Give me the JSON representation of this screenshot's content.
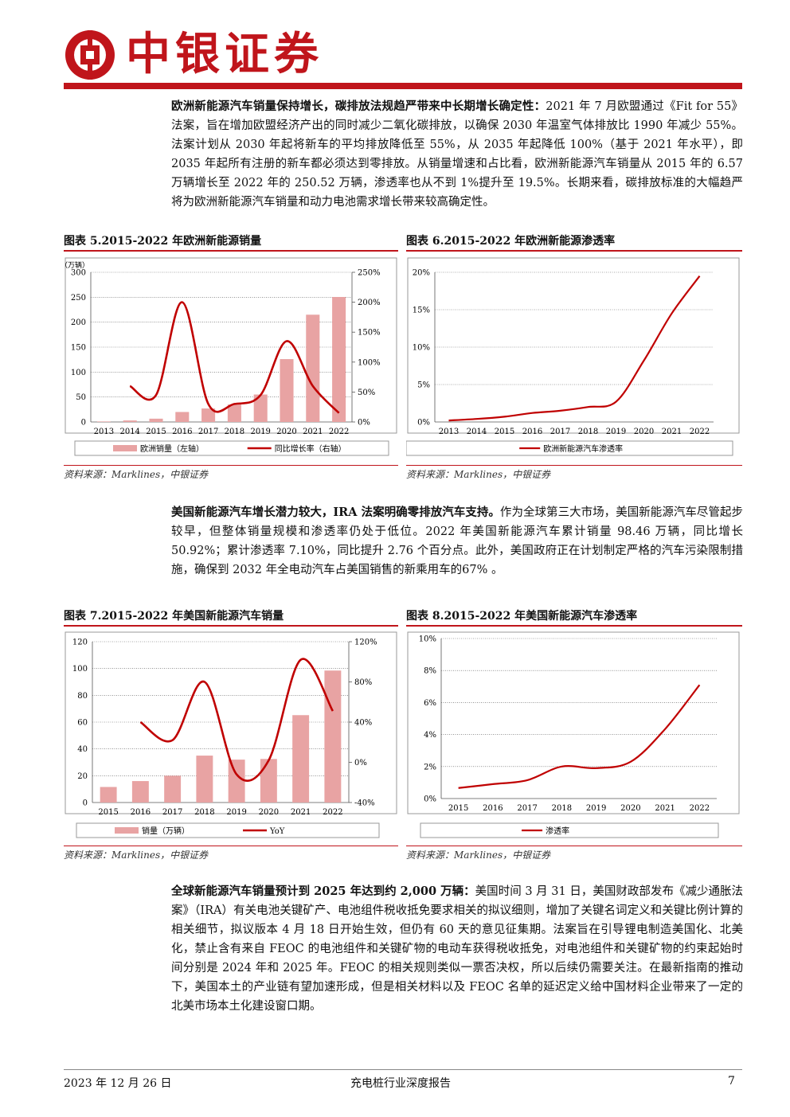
{
  "header": {
    "brand": "中银证券"
  },
  "paragraphs": [
    {
      "bold": "欧洲新能源汽车销量保持增长，碳排放法规趋严带来中长期增长确定性：",
      "text": "2021 年 7 月欧盟通过《Fit for 55》法案，旨在增加欧盟经济产出的同时减少二氧化碳排放，以确保 2030 年温室气体排放比 1990 年减少 55%。法案计划从 2030 年起将新车的平均排放降低至 55%，从 2035 年起降低 100%（基于 2021 年水平），即 2035 年起所有注册的新车都必须达到零排放。从销量增速和占比看，欧洲新能源汽车销量从 2015 年的 6.57 万辆增长至 2022 年的 250.52 万辆，渗透率也从不到 1%提升至 19.5%。长期来看，碳排放标准的大幅趋严将为欧洲新能源汽车销量和动力电池需求增长带来较高确定性。"
    },
    {
      "bold": "美国新能源汽车增长潜力较大，IRA 法案明确零排放汽车支持。",
      "text": "作为全球第三大市场，美国新能源汽车尽管起步较早，但整体销量规模和渗透率仍处于低位。2022 年美国新能源汽车累计销量 98.46 万辆，同比增长 50.92%；累计渗透率 7.10%，同比提升 2.76 个百分点。此外，美国政府正在计划制定严格的汽车污染限制措施，确保到 2032 年全电动汽车占美国销售的新乘用车的67% 。"
    },
    {
      "bold": "全球新能源汽车销量预计到 2025 年达到约 2,000 万辆：",
      "text": "美国时间 3 月 31 日，美国财政部发布《减少通胀法案》（IRA）有关电池关键矿产、电池组件税收抵免要求相关的拟议细则，增加了关键名词定义和关键比例计算的相关细节，拟议版本 4 月 18 日开始生效，但仍有 60 天的意见征集期。法案旨在引导锂电制造美国化、北美化，禁止含有来自 FEOC 的电池组件和关键矿物的电动车获得税收抵免，对电池组件和关键矿物的约束起始时间分别是 2024 年和 2025 年。FEOC 的相关规则类似一票否决权，所以后续仍需要关注。在最新指南的推动下，美国本土的产业链有望加速形成，但是相关材料以及 FEOC 名单的延迟定义给中国材料企业带来了一定的北美市场本土化建设窗口期。"
    }
  ],
  "figures": [
    {
      "title": "图表 5.2015-2022 年欧洲新能源销量",
      "source": "资料来源：Marklines，中银证券"
    },
    {
      "title": "图表 6.2015-2022 年欧洲新能源渗透率",
      "source": "资料来源：Marklines，中银证券"
    },
    {
      "title": "图表 7.2015-2022 年美国新能源汽车销量",
      "source": "资料来源：Marklines，中银证券"
    },
    {
      "title": "图表 8.2015-2022 年美国新能源汽车渗透率",
      "source": "资料来源：Marklines，中银证券"
    }
  ],
  "chart_data": [
    {
      "type": "bar",
      "categories": [
        "2013",
        "2014",
        "2015",
        "2016",
        "2017",
        "2018",
        "2019",
        "2020",
        "2021",
        "2022"
      ],
      "unit_label": "（万辆）",
      "left_ticks": [
        "0",
        "50",
        "100",
        "150",
        "200",
        "250",
        "300"
      ],
      "right_ticks": [
        "0%",
        "50%",
        "100%",
        "150%",
        "200%",
        "250%"
      ],
      "ylim": [
        0,
        300
      ],
      "y2lim": [
        0,
        250
      ],
      "series": [
        {
          "name": "欧洲销量（左轴）",
          "type": "bar",
          "color": "#e8a3a3",
          "values": [
            1,
            3,
            6.57,
            20,
            27,
            35,
            55,
            126,
            215,
            250.52
          ]
        },
        {
          "name": "同比增长率（右轴）",
          "type": "line",
          "color": "#c00000",
          "axis": "right",
          "values": [
            null,
            60,
            45,
            200,
            30,
            30,
            45,
            135,
            60,
            15
          ]
        }
      ],
      "legend": "bottom"
    },
    {
      "type": "line",
      "categories": [
        "2013",
        "2014",
        "2015",
        "2016",
        "2017",
        "2018",
        "2019",
        "2020",
        "2021",
        "2022"
      ],
      "ticks": [
        "0%",
        "5%",
        "10%",
        "15%",
        "20%"
      ],
      "ylim": [
        0,
        20
      ],
      "series": [
        {
          "name": "欧洲新能源汽车渗透率",
          "color": "#c00000",
          "values": [
            0.2,
            0.4,
            0.7,
            1.2,
            1.5,
            2.0,
            2.7,
            8.2,
            14.5,
            19.5
          ]
        }
      ],
      "legend": "bottom"
    },
    {
      "type": "bar",
      "categories": [
        "2015",
        "2016",
        "2017",
        "2018",
        "2019",
        "2020",
        "2021",
        "2022"
      ],
      "left_ticks": [
        "0",
        "20",
        "40",
        "60",
        "80",
        "100",
        "120"
      ],
      "right_ticks": [
        "-40%",
        "0%",
        "40%",
        "80%",
        "120%"
      ],
      "ylim": [
        0,
        120
      ],
      "y2lim": [
        -40,
        120
      ],
      "series": [
        {
          "name": "销量（万辆）",
          "type": "bar",
          "color": "#e8a3a3",
          "values": [
            11.6,
            16.0,
            20.0,
            35.0,
            32.0,
            32.5,
            65.2,
            98.46
          ]
        },
        {
          "name": "YoY",
          "type": "line",
          "color": "#c00000",
          "axis": "right",
          "values": [
            null,
            40,
            22,
            80,
            -12,
            2,
            102,
            51
          ]
        }
      ],
      "legend": "bottom"
    },
    {
      "type": "line",
      "categories": [
        "2015",
        "2016",
        "2017",
        "2018",
        "2019",
        "2020",
        "2021",
        "2022"
      ],
      "ticks": [
        "0%",
        "2%",
        "4%",
        "6%",
        "8%",
        "10%"
      ],
      "ylim": [
        0,
        10
      ],
      "series": [
        {
          "name": "渗透率",
          "color": "#c00000",
          "values": [
            0.66,
            0.9,
            1.15,
            2.0,
            1.9,
            2.3,
            4.34,
            7.1
          ]
        }
      ],
      "legend": "bottom"
    }
  ],
  "footer": {
    "date": "2023 年 12 月 26 日",
    "title": "充电桩行业深度报告",
    "page": "7"
  }
}
